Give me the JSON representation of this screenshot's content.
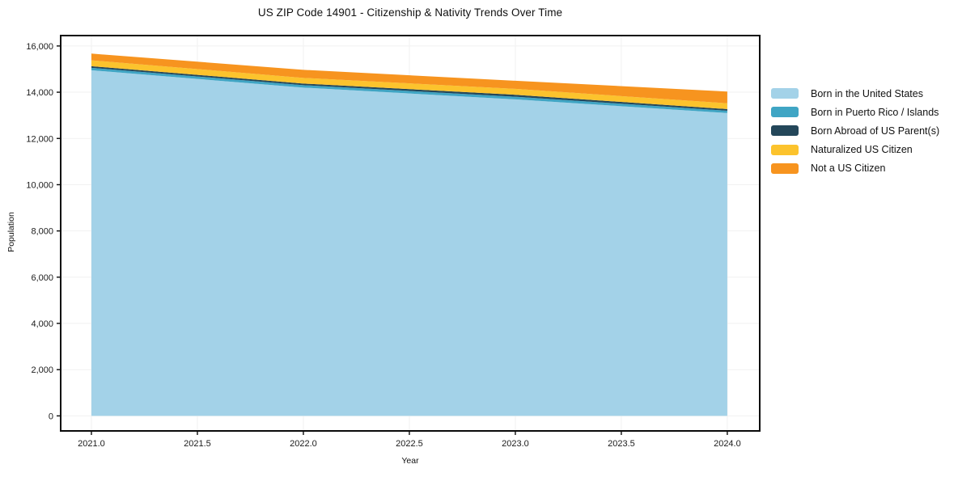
{
  "title": "US ZIP Code 14901 - Citizenship & Nativity Trends Over Time",
  "chart_data": {
    "type": "area",
    "stacked": true,
    "title": "US ZIP Code 14901 - Citizenship & Nativity Trends Over Time",
    "xlabel": "Year",
    "ylabel": "Population",
    "x": [
      2021,
      2022,
      2023,
      2024
    ],
    "series": [
      {
        "name": "Born in the United States",
        "color": "#a3d2e8",
        "values": [
          14950,
          14200,
          13690,
          13100
        ]
      },
      {
        "name": "Born in Puerto Rico / Islands",
        "color": "#3fa5c4",
        "values": [
          105,
          105,
          115,
          100
        ]
      },
      {
        "name": "Born Abroad of US Parent(s)",
        "color": "#24475a",
        "values": [
          70,
          70,
          85,
          70
        ]
      },
      {
        "name": "Naturalized US Citizen",
        "color": "#fcc32d",
        "values": [
          255,
          245,
          255,
          250
        ]
      },
      {
        "name": "Not a US Citizen",
        "color": "#f7941f",
        "values": [
          290,
          350,
          350,
          510
        ]
      }
    ],
    "totals": [
      15670,
      14970,
      14495,
      14030
    ],
    "x_ticks": [
      {
        "value": 2021.0,
        "label": "2021.0"
      },
      {
        "value": 2021.5,
        "label": "2021.5"
      },
      {
        "value": 2022.0,
        "label": "2022.0"
      },
      {
        "value": 2022.5,
        "label": "2022.5"
      },
      {
        "value": 2023.0,
        "label": "2023.0"
      },
      {
        "value": 2023.5,
        "label": "2023.5"
      },
      {
        "value": 2024.0,
        "label": "2024.0"
      }
    ],
    "y_ticks": [
      {
        "value": 0,
        "label": "0"
      },
      {
        "value": 2000,
        "label": "2,000"
      },
      {
        "value": 4000,
        "label": "4,000"
      },
      {
        "value": 6000,
        "label": "6,000"
      },
      {
        "value": 8000,
        "label": "8,000"
      },
      {
        "value": 10000,
        "label": "10,000"
      },
      {
        "value": 12000,
        "label": "12,000"
      },
      {
        "value": 14000,
        "label": "14,000"
      },
      {
        "value": 16000,
        "label": "16,000"
      }
    ],
    "xlim": [
      2020.855,
      2024.153
    ],
    "ylim": [
      -650,
      16450
    ],
    "grid": true,
    "legend_position": "right"
  },
  "colors": {
    "grid": "#f1f1f1",
    "spine": "#0a0a0a",
    "tick_text": "#1a1a1a",
    "background": "#ffffff"
  }
}
